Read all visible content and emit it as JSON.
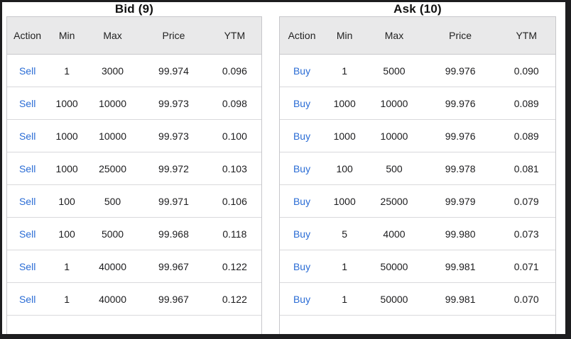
{
  "tables": [
    {
      "id": "bid",
      "title": "Bid (9)",
      "columns": [
        "Action",
        "Min",
        "Max",
        "Price",
        "YTM"
      ],
      "rows": [
        {
          "action": "Sell",
          "min": "1",
          "max": "3000",
          "price": "99.974",
          "ytm": "0.096"
        },
        {
          "action": "Sell",
          "min": "1000",
          "max": "10000",
          "price": "99.973",
          "ytm": "0.098"
        },
        {
          "action": "Sell",
          "min": "1000",
          "max": "10000",
          "price": "99.973",
          "ytm": "0.100"
        },
        {
          "action": "Sell",
          "min": "1000",
          "max": "25000",
          "price": "99.972",
          "ytm": "0.103"
        },
        {
          "action": "Sell",
          "min": "100",
          "max": "500",
          "price": "99.971",
          "ytm": "0.106"
        },
        {
          "action": "Sell",
          "min": "100",
          "max": "5000",
          "price": "99.968",
          "ytm": "0.118"
        },
        {
          "action": "Sell",
          "min": "1",
          "max": "40000",
          "price": "99.967",
          "ytm": "0.122"
        },
        {
          "action": "Sell",
          "min": "1",
          "max": "40000",
          "price": "99.967",
          "ytm": "0.122"
        }
      ]
    },
    {
      "id": "ask",
      "title": "Ask (10)",
      "columns": [
        "Action",
        "Min",
        "Max",
        "Price",
        "YTM"
      ],
      "rows": [
        {
          "action": "Buy",
          "min": "1",
          "max": "5000",
          "price": "99.976",
          "ytm": "0.090"
        },
        {
          "action": "Buy",
          "min": "1000",
          "max": "10000",
          "price": "99.976",
          "ytm": "0.089"
        },
        {
          "action": "Buy",
          "min": "1000",
          "max": "10000",
          "price": "99.976",
          "ytm": "0.089"
        },
        {
          "action": "Buy",
          "min": "100",
          "max": "500",
          "price": "99.978",
          "ytm": "0.081"
        },
        {
          "action": "Buy",
          "min": "1000",
          "max": "25000",
          "price": "99.979",
          "ytm": "0.079"
        },
        {
          "action": "Buy",
          "min": "5",
          "max": "4000",
          "price": "99.980",
          "ytm": "0.073"
        },
        {
          "action": "Buy",
          "min": "1",
          "max": "50000",
          "price": "99.981",
          "ytm": "0.071"
        },
        {
          "action": "Buy",
          "min": "1",
          "max": "50000",
          "price": "99.981",
          "ytm": "0.070"
        }
      ]
    }
  ],
  "colors": {
    "link_blue": "#2a6cd5",
    "header_background": "#e9e9ea",
    "table_border": "#c7c7cb",
    "row_border": "#d9d9dc",
    "text": "#1c1c1e",
    "window_frame": "#1d1d1f"
  }
}
